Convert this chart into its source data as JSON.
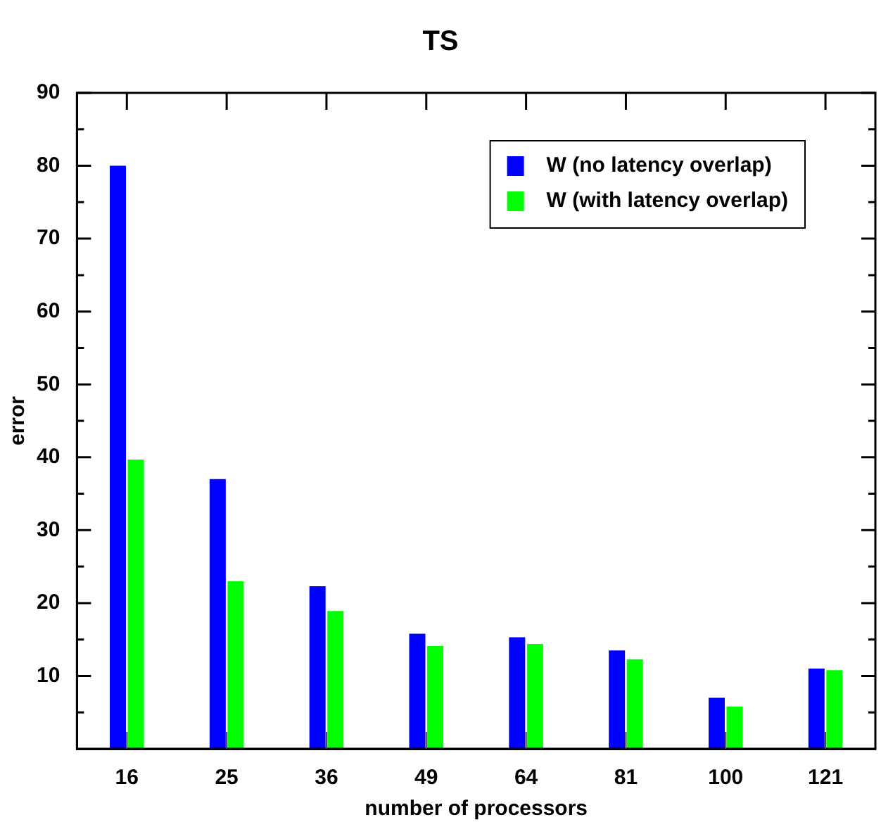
{
  "chart_data": {
    "type": "bar",
    "title": "TS",
    "xlabel": "number of processors",
    "ylabel": "error",
    "categories": [
      "16",
      "25",
      "36",
      "49",
      "64",
      "81",
      "100",
      "121"
    ],
    "series": [
      {
        "name": "W (no latency overlap)",
        "color": "#0000ff",
        "values": [
          80,
          37,
          22.3,
          15.8,
          15.3,
          13.5,
          7,
          11
        ]
      },
      {
        "name": "W (with latency overlap)",
        "color": "#00ff00",
        "values": [
          39.7,
          23,
          18.9,
          14.1,
          14.4,
          12.3,
          5.8,
          10.8
        ]
      }
    ],
    "ylim": [
      0,
      90
    ],
    "yticks": [
      {
        "value": 5,
        "label": null
      },
      10,
      {
        "value": 15,
        "label": null
      },
      20,
      {
        "value": 25,
        "label": null
      },
      30,
      {
        "value": 35,
        "label": null
      },
      40,
      {
        "value": 45,
        "label": null
      },
      50,
      {
        "value": 55,
        "label": null
      },
      60,
      {
        "value": 65,
        "label": null
      },
      70,
      {
        "value": 75,
        "label": null
      },
      80,
      {
        "value": 85,
        "label": null
      },
      90
    ],
    "legend": "top right"
  }
}
